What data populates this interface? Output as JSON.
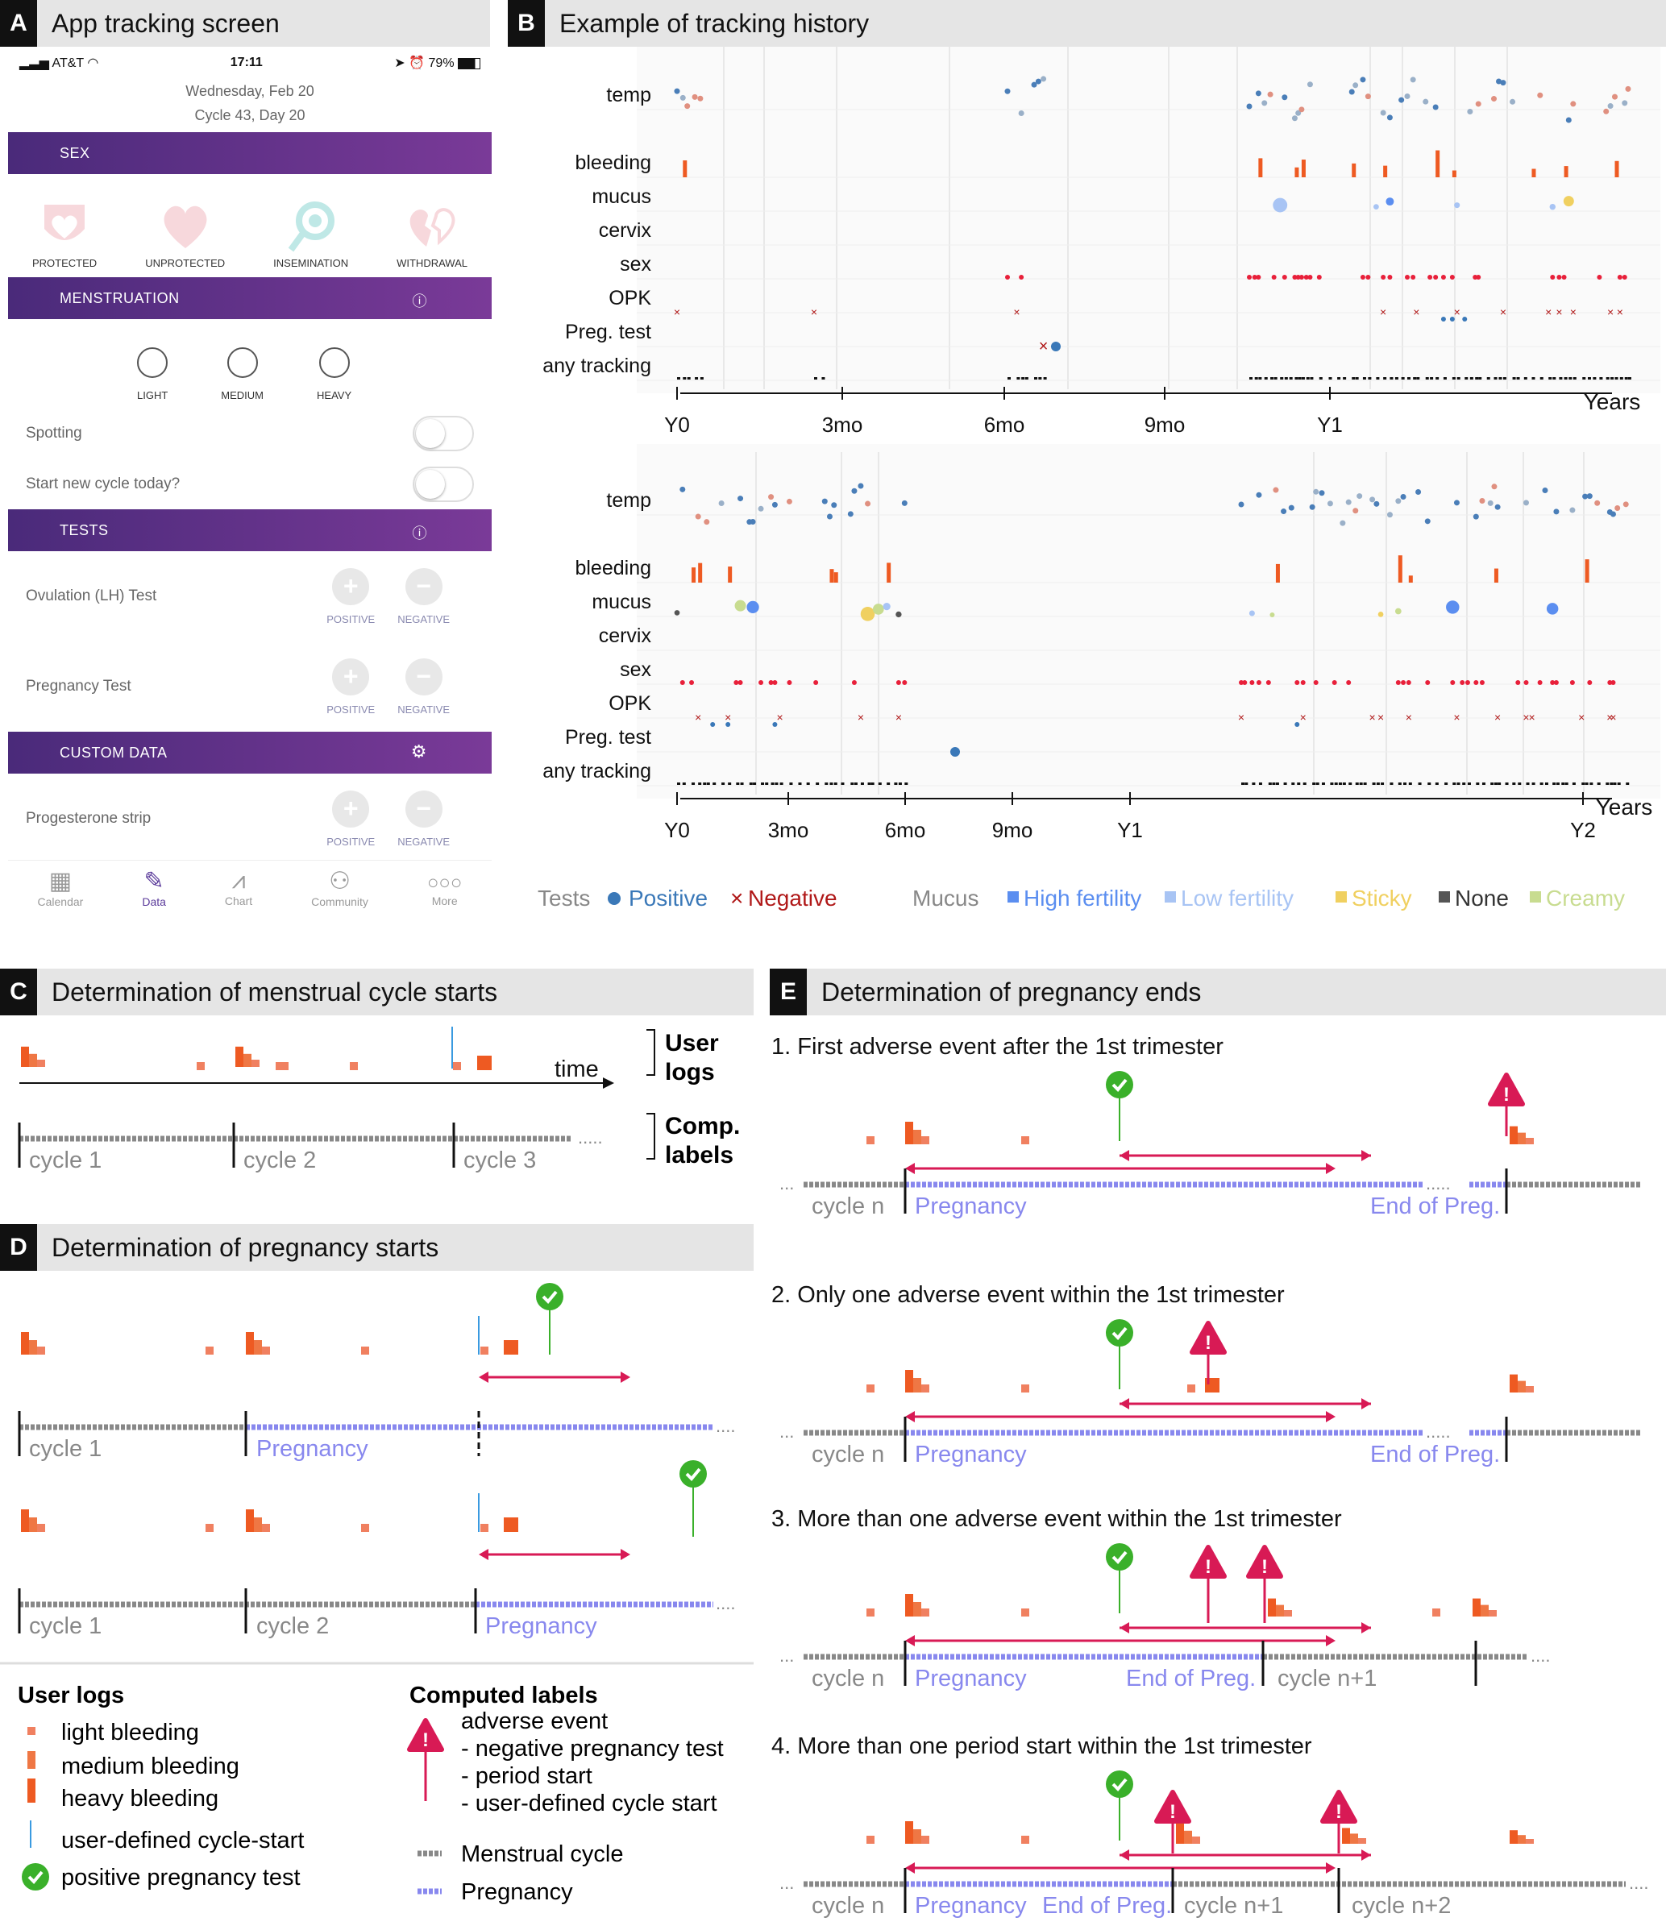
{
  "panels": {
    "a": {
      "letter": "A",
      "title": "App tracking screen"
    },
    "b": {
      "letter": "B",
      "title": "Example of tracking history"
    },
    "c": {
      "letter": "C",
      "title": "Determination of menstrual cycle starts"
    },
    "d": {
      "letter": "D",
      "title": "Determination of pregnancy starts"
    },
    "e": {
      "letter": "E",
      "title": "Determination of pregnancy ends"
    }
  },
  "app": {
    "status": {
      "carrier": "AT&T",
      "time": "17:11",
      "battery": "79%"
    },
    "date": "Wednesday, Feb 20",
    "cycle": "Cycle 43, Day 20",
    "sections": {
      "sex": "SEX",
      "menstruation": "MENSTRUATION",
      "tests": "TESTS",
      "custom": "CUSTOM DATA"
    },
    "sex_options": [
      "PROTECTED",
      "UNPROTECTED",
      "INSEMINATION",
      "WITHDRAWAL"
    ],
    "flow_options": [
      "LIGHT",
      "MEDIUM",
      "HEAVY"
    ],
    "spotting": "Spotting",
    "new_cycle": "Start new cycle today?",
    "tests": [
      "Ovulation (LH) Test",
      "Pregnancy Test"
    ],
    "custom_items": [
      "Progesterone strip"
    ],
    "positive": "POSITIVE",
    "negative": "NEGATIVE",
    "tabs": [
      "Calendar",
      "Data",
      "Chart",
      "Community",
      "More"
    ],
    "active_tab": "Data",
    "accent": "#5a3a9a"
  },
  "history": {
    "rows": [
      "temp",
      "bleeding",
      "mucus",
      "cervix",
      "sex",
      "OPK",
      "Preg. test",
      "any tracking"
    ],
    "top_axis": [
      "Y0",
      "3mo",
      "6mo",
      "9mo",
      "Y1"
    ],
    "bottom_axis": [
      "Y0",
      "3mo",
      "6mo",
      "9mo",
      "Y1",
      "Y2"
    ],
    "axis_unit": "Years",
    "legend": {
      "tests_label": "Tests",
      "positive": "Positive",
      "negative": "Negative",
      "mucus_label": "Mucus",
      "mucus_types": [
        "High fertility",
        "Low fertility",
        "Sticky",
        "None",
        "Creamy"
      ]
    },
    "colors": {
      "positive": "#3a78b8",
      "negative": "#b01818",
      "high": "#5b8ef0",
      "low": "#a8c4f4",
      "sticky": "#f0d060",
      "none": "#555555",
      "creamy": "#c8dc90",
      "bleed": "#ee5a22",
      "sex": "#e8203a"
    }
  },
  "c": {
    "user_logs": [
      "User",
      "logs"
    ],
    "comp_labels": [
      "Comp.",
      "labels"
    ],
    "time": "time",
    "cycles": [
      "cycle 1",
      "cycle 2",
      "cycle 3"
    ],
    "ellipsis": "....."
  },
  "d": {
    "row1": [
      "cycle 1",
      "Pregnancy"
    ],
    "row2": [
      "cycle 1",
      "cycle 2",
      "Pregnancy"
    ]
  },
  "legend": {
    "user_logs_title": "User logs",
    "user_items": [
      "light bleeding",
      "medium bleeding",
      "heavy bleeding",
      "user-defined cycle-start",
      "positive pregnancy test"
    ],
    "computed_title": "Computed labels",
    "adverse": [
      "adverse event",
      "- negative pregnancy test",
      "- period start",
      "- user-defined cycle start"
    ],
    "lines": [
      "Menstrual cycle",
      "Pregnancy"
    ]
  },
  "e": {
    "cases": [
      {
        "title": "1. First adverse event after the 1st trimester",
        "labels": [
          "cycle n",
          "Pregnancy",
          "End of Preg."
        ]
      },
      {
        "title": "2. Only one adverse event within the 1st trimester",
        "labels": [
          "cycle n",
          "Pregnancy",
          "End of Preg."
        ]
      },
      {
        "title": "3. More than one adverse event within the 1st trimester",
        "labels": [
          "cycle n",
          "Pregnancy",
          "End of Preg.",
          "cycle n+1"
        ]
      },
      {
        "title": "4. More than one period start within the 1st trimester",
        "labels": [
          "cycle n",
          "Pregnancy",
          "End of Preg.",
          "cycle n+1",
          "cycle n+2"
        ]
      }
    ]
  }
}
